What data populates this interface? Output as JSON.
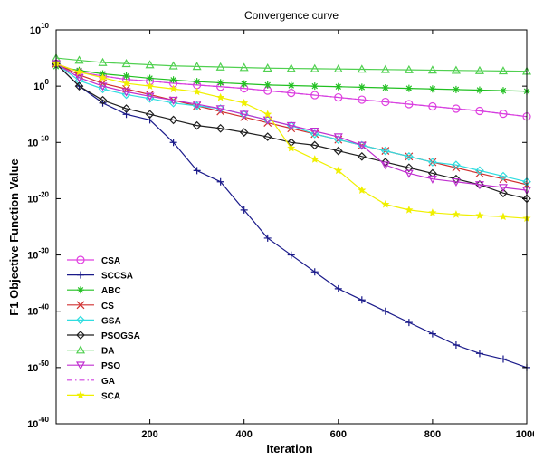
{
  "chart_data": {
    "type": "line",
    "title": "Convergence curve",
    "xlabel": "Iteration",
    "ylabel": "F1 Objective Function Value",
    "yscale": "log",
    "xlim": [
      1,
      1000
    ],
    "ylim": [
      1e-60,
      10000000000.0
    ],
    "xticks": [
      200,
      400,
      600,
      800,
      1000
    ],
    "xtick_labels": [
      "200",
      "400",
      "600",
      "800",
      "1000"
    ],
    "yticks": [
      1e-60,
      1e-50,
      1e-40,
      1e-30,
      1e-20,
      1e-10,
      1,
      10000000000.0
    ],
    "ytick_labels": [
      {
        "base": "10",
        "exp": "-60"
      },
      {
        "base": "10",
        "exp": "-50"
      },
      {
        "base": "10",
        "exp": "-40"
      },
      {
        "base": "10",
        "exp": "-30"
      },
      {
        "base": "10",
        "exp": "-20"
      },
      {
        "base": "10",
        "exp": "-10"
      },
      {
        "base": "10",
        "exp": "0"
      },
      {
        "base": "10",
        "exp": "10"
      }
    ],
    "grid": false,
    "legend_position": "bottom-left",
    "x": [
      1,
      50,
      100,
      150,
      200,
      250,
      300,
      350,
      400,
      450,
      500,
      550,
      600,
      650,
      700,
      750,
      800,
      850,
      900,
      950,
      1000
    ],
    "series": [
      {
        "name": "CSA",
        "color": "#e040e0",
        "marker": "circle",
        "line": "solid",
        "log10_values": [
          4,
          2.5,
          1.8,
          1.2,
          0.9,
          0.5,
          0.2,
          -0.1,
          -0.4,
          -0.8,
          -1.2,
          -1.6,
          -2.0,
          -2.4,
          -2.8,
          -3.2,
          -3.6,
          -4.0,
          -4.4,
          -4.9,
          -5.4
        ]
      },
      {
        "name": "SCCSA",
        "color": "#1a1a8a",
        "marker": "plus",
        "line": "solid",
        "log10_values": [
          4,
          0,
          -3,
          -5,
          -6,
          -10,
          -15,
          -17,
          -22,
          -27,
          -30,
          -33,
          -36,
          -38,
          -40,
          -42,
          -44,
          -46,
          -47.5,
          -48.5,
          -50
        ]
      },
      {
        "name": "ABC",
        "color": "#22c022",
        "marker": "asterisk",
        "line": "solid",
        "log10_values": [
          3.5,
          2.8,
          2.2,
          1.8,
          1.4,
          1.1,
          0.8,
          0.6,
          0.4,
          0.2,
          0.1,
          0.0,
          -0.1,
          -0.2,
          -0.3,
          -0.4,
          -0.5,
          -0.6,
          -0.7,
          -0.8,
          -0.9
        ]
      },
      {
        "name": "CS",
        "color": "#d03030",
        "marker": "x",
        "line": "solid",
        "log10_values": [
          4,
          2,
          0.5,
          -0.5,
          -1.5,
          -2.5,
          -3.5,
          -4.5,
          -5.5,
          -6.5,
          -7.5,
          -8.5,
          -9.5,
          -10.5,
          -11.5,
          -12.5,
          -13.5,
          -14.5,
          -15.5,
          -16.5,
          -17.5
        ]
      },
      {
        "name": "GSA",
        "color": "#30dde0",
        "marker": "diamond",
        "line": "solid",
        "log10_values": [
          4,
          1,
          -0.5,
          -1.5,
          -2.2,
          -3,
          -3.5,
          -4,
          -5,
          -6,
          -7,
          -8.5,
          -9.5,
          -10.5,
          -11.5,
          -12.5,
          -13.5,
          -14,
          -15,
          -16,
          -17
        ]
      },
      {
        "name": "PSOGSA",
        "color": "#202020",
        "marker": "diamond",
        "line": "solid",
        "log10_values": [
          4,
          0,
          -2.5,
          -4,
          -5,
          -6,
          -7,
          -7.5,
          -8.2,
          -9,
          -10,
          -10.5,
          -11.5,
          -12.5,
          -13.5,
          -14.5,
          -15.5,
          -16.5,
          -17.5,
          -19,
          -20
        ]
      },
      {
        "name": "DA",
        "color": "#50d050",
        "marker": "triangle-up",
        "line": "solid",
        "log10_values": [
          5,
          4.6,
          4.2,
          4.0,
          3.8,
          3.6,
          3.5,
          3.4,
          3.3,
          3.2,
          3.15,
          3.1,
          3.05,
          3.0,
          2.95,
          2.9,
          2.85,
          2.8,
          2.75,
          2.7,
          2.65
        ]
      },
      {
        "name": "PSO",
        "color": "#c030d0",
        "marker": "triangle-down",
        "line": "solid",
        "log10_values": [
          4,
          1.5,
          0,
          -1,
          -1.8,
          -2.5,
          -3.2,
          -4,
          -5,
          -6,
          -7,
          -8,
          -9,
          -10.5,
          -14,
          -15.5,
          -16.5,
          -17,
          -17.5,
          -18,
          -18.5
        ]
      },
      {
        "name": "GA",
        "color": "#d040e0",
        "marker": "none",
        "line": "dashdot",
        "log10_values": [
          4,
          2.5,
          1.8,
          1.2,
          0.9,
          0.5,
          0.2,
          -0.1,
          -0.4,
          -0.8,
          -1.2,
          -1.6,
          -2.0,
          -2.4,
          -2.8,
          -3.2,
          -3.6,
          -4.0,
          -4.4,
          -4.9,
          -5.4
        ]
      },
      {
        "name": "SCA",
        "color": "#f0f000",
        "marker": "star",
        "line": "solid",
        "log10_values": [
          4,
          2.5,
          1.5,
          0.5,
          0,
          -0.5,
          -1,
          -2,
          -3,
          -5,
          -11,
          -13,
          -15,
          -18.5,
          -21,
          -22,
          -22.5,
          -22.8,
          -23,
          -23.2,
          -23.5
        ]
      }
    ]
  }
}
